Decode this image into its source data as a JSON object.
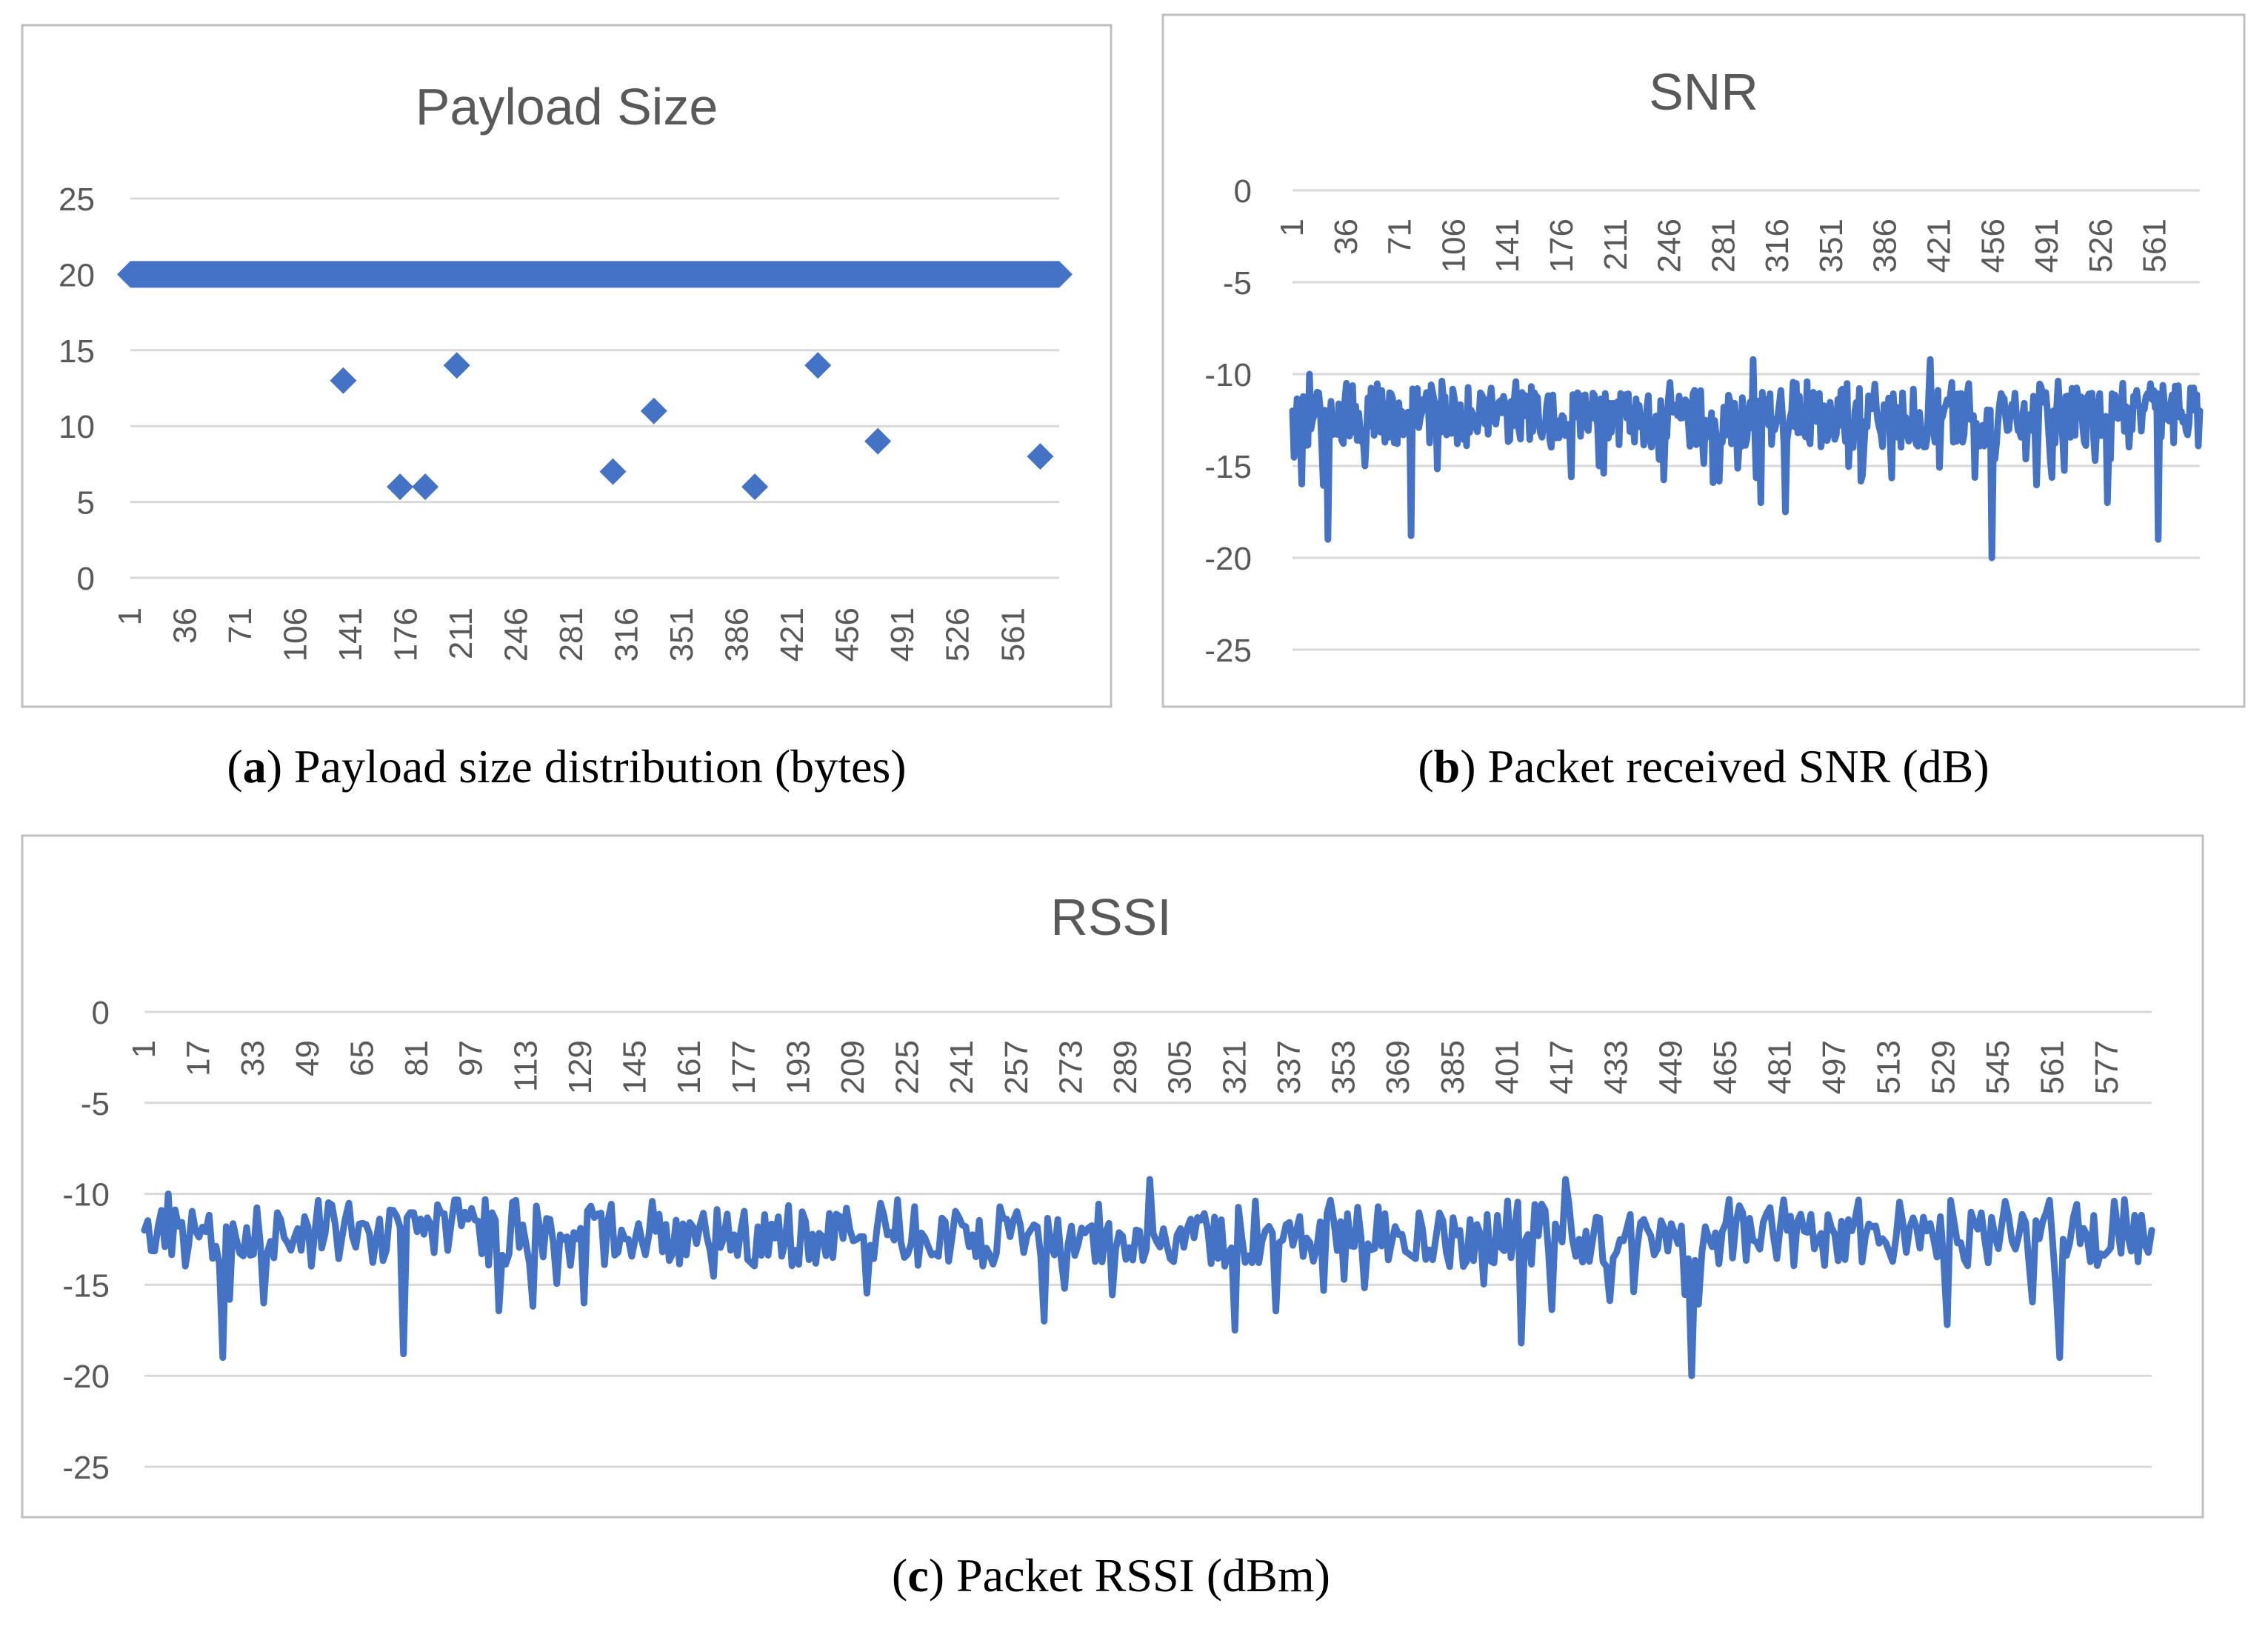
{
  "chart_data": [
    {
      "id": "a",
      "type": "scatter",
      "title": "Payload Size",
      "caption": {
        "letter": "a",
        "text": "Payload size distribution (bytes)"
      },
      "ylim": [
        0,
        25
      ],
      "yticks": [
        0,
        5,
        10,
        15,
        20,
        25
      ],
      "xticks": [
        1,
        36,
        71,
        106,
        141,
        176,
        211,
        246,
        281,
        316,
        351,
        386,
        421,
        456,
        491,
        526,
        561
      ],
      "xrange": [
        1,
        590
      ],
      "grid": true,
      "legend": "none",
      "marker": "diamond",
      "baseline_value": 20,
      "baseline_description": "Packets 1–590 at 20 bytes except outliers listed below",
      "outliers": [
        {
          "x": 136,
          "y": 13
        },
        {
          "x": 172,
          "y": 6
        },
        {
          "x": 188,
          "y": 6
        },
        {
          "x": 208,
          "y": 14
        },
        {
          "x": 307,
          "y": 7
        },
        {
          "x": 333,
          "y": 11
        },
        {
          "x": 397,
          "y": 6
        },
        {
          "x": 437,
          "y": 14
        },
        {
          "x": 475,
          "y": 9
        },
        {
          "x": 578,
          "y": 8
        }
      ],
      "color": "#4472C4"
    },
    {
      "id": "b",
      "type": "line",
      "title": "SNR",
      "caption": {
        "letter": "b",
        "text": "Packet received SNR (dB)"
      },
      "ylim": [
        -25,
        0
      ],
      "yticks": [
        0,
        -5,
        -10,
        -15,
        -20,
        -25
      ],
      "xticks": [
        1,
        36,
        71,
        106,
        141,
        176,
        211,
        246,
        281,
        316,
        351,
        386,
        421,
        456,
        491,
        526,
        561
      ],
      "xrange": [
        1,
        590
      ],
      "grid": true,
      "legend": "none",
      "series_description": "Noisy series around -12 dB, range about -9 to -20",
      "anchor_points": [
        {
          "x": 1,
          "y": -12
        },
        {
          "x": 12,
          "y": -10
        },
        {
          "x": 24,
          "y": -19
        },
        {
          "x": 36,
          "y": -10.5
        },
        {
          "x": 48,
          "y": -15
        },
        {
          "x": 78,
          "y": -18.8
        },
        {
          "x": 150,
          "y": -11
        },
        {
          "x": 200,
          "y": -15
        },
        {
          "x": 300,
          "y": -9.2
        },
        {
          "x": 305,
          "y": -17
        },
        {
          "x": 321,
          "y": -17.5
        },
        {
          "x": 415,
          "y": -9.2
        },
        {
          "x": 455,
          "y": -20
        },
        {
          "x": 530,
          "y": -17
        },
        {
          "x": 563,
          "y": -19
        },
        {
          "x": 590,
          "y": -12
        }
      ],
      "color": "#4472C4"
    },
    {
      "id": "c",
      "type": "line",
      "title": "RSSI",
      "caption": {
        "letter": "c",
        "text": "Packet RSSI (dBm)"
      },
      "ylim": [
        -25,
        0
      ],
      "yticks": [
        0,
        -5,
        -10,
        -15,
        -20,
        -25
      ],
      "xticks": [
        1,
        17,
        33,
        49,
        65,
        81,
        97,
        113,
        129,
        145,
        161,
        177,
        193,
        209,
        225,
        241,
        257,
        273,
        289,
        305,
        321,
        337,
        353,
        369,
        385,
        401,
        417,
        433,
        449,
        465,
        481,
        497,
        513,
        529,
        545,
        561,
        577
      ],
      "xrange": [
        1,
        590
      ],
      "grid": true,
      "legend": "none",
      "series_description": "Noisy series around -12 dBm, range about -9 to -20",
      "anchor_points": [
        {
          "x": 1,
          "y": -12
        },
        {
          "x": 8,
          "y": -10
        },
        {
          "x": 24,
          "y": -19
        },
        {
          "x": 36,
          "y": -16
        },
        {
          "x": 77,
          "y": -18.8
        },
        {
          "x": 130,
          "y": -16
        },
        {
          "x": 265,
          "y": -17
        },
        {
          "x": 296,
          "y": -9.2
        },
        {
          "x": 321,
          "y": -17.5
        },
        {
          "x": 405,
          "y": -18.2
        },
        {
          "x": 418,
          "y": -9.2
        },
        {
          "x": 455,
          "y": -20
        },
        {
          "x": 530,
          "y": -17.2
        },
        {
          "x": 563,
          "y": -19
        },
        {
          "x": 590,
          "y": -12
        }
      ],
      "color": "#4472C4"
    }
  ]
}
